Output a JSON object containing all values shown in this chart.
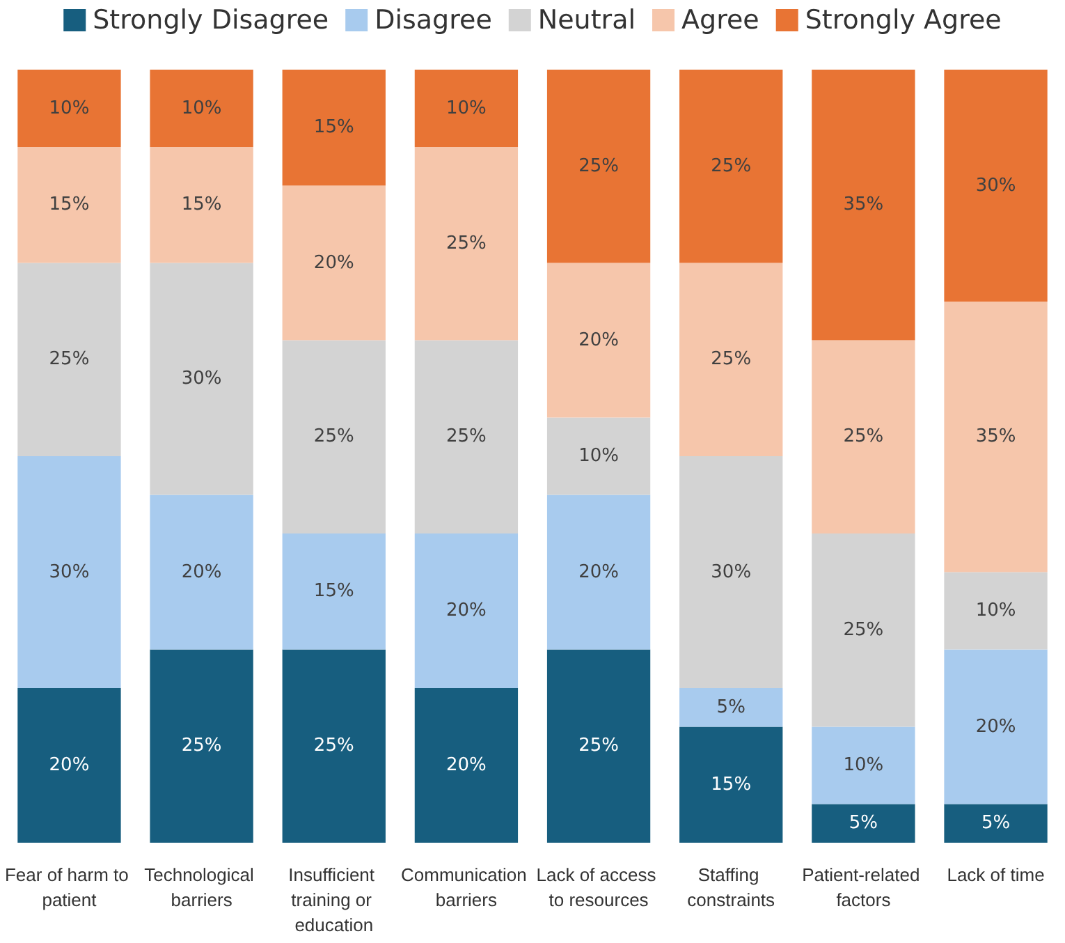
{
  "chart_data": {
    "type": "bar",
    "stacked": true,
    "legend": "top",
    "categories": [
      "Fear of harm to patient",
      "Technological barriers",
      "Insufficient training or education",
      "Communication barriers",
      "Lack of access to resources",
      "Staffing constraints",
      "Patient-related factors",
      "Lack of time"
    ],
    "series": [
      {
        "name": "Strongly Disagree",
        "color": "#175e7f",
        "values": [
          20,
          25,
          25,
          20,
          25,
          15,
          5,
          5
        ],
        "value_labels": [
          "20%",
          "25%",
          "25%",
          "20%",
          "25%",
          "15%",
          "5%",
          "5%"
        ]
      },
      {
        "name": "Disagree",
        "color": "#a8cbee",
        "values": [
          30,
          20,
          15,
          20,
          20,
          5,
          10,
          20
        ],
        "value_labels": [
          "30%",
          "20%",
          "15%",
          "20%",
          "20%",
          "5%",
          "10%",
          "20%"
        ]
      },
      {
        "name": "Neutral",
        "color": "#d3d3d3",
        "values": [
          25,
          30,
          25,
          25,
          10,
          30,
          25,
          10
        ],
        "value_labels": [
          "25%",
          "30%",
          "25%",
          "25%",
          "10%",
          "30%",
          "25%",
          "10%"
        ]
      },
      {
        "name": "Agree",
        "color": "#f6c6ab",
        "values": [
          15,
          15,
          20,
          25,
          20,
          25,
          25,
          35
        ],
        "value_labels": [
          "15%",
          "15%",
          "20%",
          "25%",
          "20%",
          "25%",
          "25%",
          "35%"
        ]
      },
      {
        "name": "Strongly Agree",
        "color": "#e87434",
        "values": [
          10,
          10,
          15,
          10,
          25,
          25,
          35,
          30
        ],
        "value_labels": [
          "10%",
          "10%",
          "15%",
          "10%",
          "25%",
          "25%",
          "35%",
          "30%"
        ]
      }
    ]
  }
}
